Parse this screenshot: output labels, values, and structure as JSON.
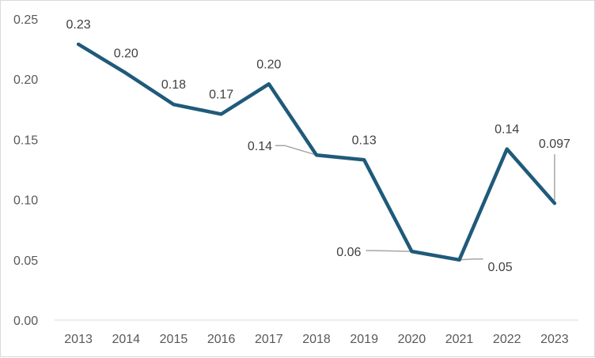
{
  "chart_data": {
    "type": "line",
    "title": "",
    "xlabel": "",
    "ylabel": "",
    "x": [
      "2013",
      "2014",
      "2015",
      "2016",
      "2017",
      "2018",
      "2019",
      "2020",
      "2021",
      "2022",
      "2023"
    ],
    "series": [
      {
        "values": [
          0.229,
          0.205,
          0.179,
          0.171,
          0.196,
          0.137,
          0.133,
          0.057,
          0.05,
          0.142,
          0.097
        ],
        "labels": [
          "0.23",
          "0.20",
          "0.18",
          "0.17",
          "0.20",
          "0.14",
          "0.13",
          "0.06",
          "0.05",
          "0.14",
          "0.097"
        ],
        "color": "#1f5a7a"
      }
    ],
    "ylim": [
      0,
      0.25
    ],
    "yticks": [
      "0.00",
      "0.05",
      "0.10",
      "0.15",
      "0.20",
      "0.25"
    ],
    "grid": false,
    "legend": "none",
    "leader_line_color": "#a6a6a6"
  }
}
